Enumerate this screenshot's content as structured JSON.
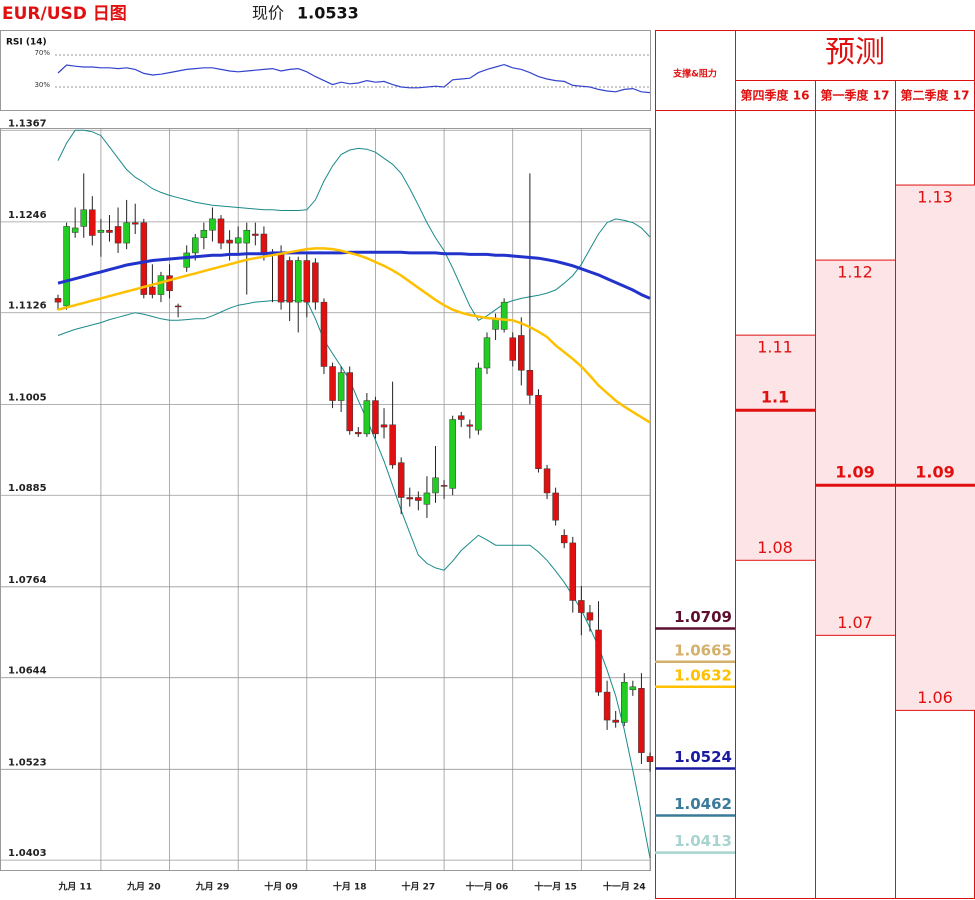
{
  "header": {
    "title": "EUR/USD 日图",
    "price_label": "现价",
    "price": 1.0533
  },
  "chart_data": [
    {
      "type": "candlestick",
      "categories": [
        null,
        null,
        "九月 11",
        null,
        null,
        null,
        null,
        null,
        null,
        null,
        "九月 20",
        null,
        null,
        null,
        null,
        null,
        null,
        null,
        "九月 29",
        null,
        null,
        null,
        null,
        null,
        null,
        null,
        "十月 09",
        null,
        null,
        null,
        null,
        null,
        null,
        null,
        "十月 18",
        null,
        null,
        null,
        null,
        null,
        null,
        null,
        "十月 27",
        null,
        null,
        null,
        null,
        null,
        null,
        null,
        "十一月 06",
        null,
        null,
        null,
        null,
        null,
        null,
        null,
        "十一月 15",
        null,
        null,
        null,
        null,
        null,
        null,
        null,
        "十一月 24",
        null,
        null,
        null
      ],
      "open": [
        1.1145,
        1.1135,
        1.1232,
        1.124,
        1.1262,
        1.1232,
        1.1235,
        1.124,
        1.1218,
        1.1245,
        1.1245,
        1.116,
        1.115,
        1.1175,
        1.1135,
        1.1186,
        1.1205,
        1.1225,
        1.1235,
        1.125,
        1.1222,
        1.1218,
        1.1218,
        1.123,
        1.123,
        1.1205,
        1.1205,
        1.1195,
        1.114,
        1.1195,
        1.1192,
        1.114,
        1.1055,
        1.101,
        1.1047,
        1.0968,
        1.0966,
        1.101,
        1.0978,
        1.0978,
        1.0928,
        1.0882,
        1.0882,
        1.0873,
        1.0888,
        1.0898,
        1.0894,
        1.099,
        1.0978,
        1.0971,
        1.1053,
        1.1104,
        1.1104,
        1.1093,
        1.1096,
        1.105,
        1.1017,
        1.092,
        1.0888,
        1.0832,
        1.0822,
        1.0746,
        1.073,
        1.0707,
        1.0625,
        1.0588,
        1.0585,
        1.0628,
        1.063,
        1.054
      ],
      "high": [
        1.115,
        1.1245,
        1.1265,
        1.131,
        1.128,
        1.125,
        1.1255,
        1.1265,
        1.1275,
        1.127,
        1.125,
        1.119,
        1.118,
        1.119,
        1.1138,
        1.1215,
        1.123,
        1.1245,
        1.1265,
        1.1255,
        1.1235,
        1.124,
        1.1245,
        1.1245,
        1.124,
        1.121,
        1.1215,
        1.12,
        1.12,
        1.1205,
        1.1198,
        1.1145,
        1.106,
        1.1055,
        1.1055,
        1.0975,
        1.102,
        1.1015,
        1.1,
        1.1035,
        1.0935,
        1.0895,
        1.089,
        1.091,
        1.095,
        1.0905,
        1.099,
        1.0995,
        1.0985,
        1.106,
        1.11,
        1.1125,
        1.1145,
        1.11,
        1.112,
        1.131,
        1.1025,
        1.0925,
        1.0895,
        1.084,
        1.083,
        1.0765,
        1.074,
        1.0745,
        1.064,
        1.06,
        1.065,
        1.064,
        1.065,
        1.0545
      ],
      "low": [
        1.113,
        1.113,
        1.1225,
        1.1225,
        1.1215,
        1.12,
        1.122,
        1.1205,
        1.121,
        1.123,
        1.1145,
        1.1145,
        1.114,
        1.1145,
        1.112,
        1.118,
        1.1195,
        1.121,
        1.122,
        1.121,
        1.1195,
        1.1205,
        1.115,
        1.1215,
        1.1195,
        1.114,
        1.113,
        1.1115,
        1.11,
        1.112,
        1.113,
        1.1045,
        1.1,
        1.0995,
        1.0965,
        1.0962,
        1.0962,
        1.096,
        1.096,
        1.092,
        1.086,
        1.087,
        1.0865,
        1.0855,
        1.0875,
        1.088,
        1.0885,
        1.0975,
        1.096,
        1.0965,
        1.1045,
        1.109,
        1.11,
        1.1055,
        1.103,
        1.1005,
        1.0915,
        1.088,
        1.0845,
        1.0815,
        1.073,
        1.07,
        1.0705,
        1.062,
        1.0575,
        1.0578,
        1.058,
        1.062,
        1.053,
        1.052
      ],
      "close": [
        1.114,
        1.124,
        1.1238,
        1.1262,
        1.1228,
        1.1235,
        1.1232,
        1.1218,
        1.1245,
        1.1243,
        1.115,
        1.115,
        1.1175,
        1.1155,
        1.1134,
        1.1205,
        1.1225,
        1.1235,
        1.125,
        1.1218,
        1.1218,
        1.1225,
        1.1235,
        1.1228,
        1.1205,
        1.1203,
        1.114,
        1.114,
        1.1195,
        1.114,
        1.114,
        1.1055,
        1.101,
        1.1047,
        1.097,
        1.0966,
        1.101,
        1.0966,
        1.0975,
        1.0925,
        1.0882,
        1.088,
        1.0878,
        1.0888,
        1.0908,
        1.0897,
        1.0985,
        1.0985,
        1.0976,
        1.1053,
        1.1093,
        1.1117,
        1.114,
        1.1063,
        1.105,
        1.1017,
        1.092,
        1.0888,
        1.0852,
        1.0822,
        1.0746,
        1.073,
        1.072,
        1.0625,
        1.0588,
        1.0585,
        1.0638,
        1.0632,
        1.0545,
        1.0533
      ],
      "up_color": "#22cc22",
      "down_color": "#e01010",
      "series": [
        {
          "color": "#1a8a8a",
          "width": 1,
          "values": [
            1.1327,
            1.135,
            1.1367,
            1.1367,
            1.1365,
            1.136,
            1.1345,
            1.133,
            1.1315,
            1.1305,
            1.1298,
            1.129,
            1.1285,
            1.1281,
            1.1278,
            1.1275,
            1.1272,
            1.127,
            1.1268,
            1.1267,
            1.1266,
            1.1265,
            1.1264,
            1.1263,
            1.1262,
            1.1262,
            1.1261,
            1.1261,
            1.1261,
            1.1262,
            1.1275,
            1.13,
            1.132,
            1.1335,
            1.1341,
            1.1343,
            1.1342,
            1.1338,
            1.133,
            1.1322,
            1.131,
            1.129,
            1.1268,
            1.1245,
            1.1225,
            1.1208,
            1.1185,
            1.116,
            1.1135,
            1.1116,
            1.1122,
            1.113,
            1.1138,
            1.1142,
            1.1145,
            1.1147,
            1.1149,
            1.1152,
            1.1156,
            1.1165,
            1.1175,
            1.119,
            1.121,
            1.123,
            1.1245,
            1.125,
            1.1248,
            1.1245,
            1.1238,
            1.1226
          ]
        },
        {
          "color": "#1a8a8a",
          "width": 1,
          "values": [
            1.1096,
            1.11,
            1.1104,
            1.1107,
            1.111,
            1.1113,
            1.1117,
            1.112,
            1.1123,
            1.1126,
            1.1124,
            1.1121,
            1.1118,
            1.1116,
            1.1116,
            1.1117,
            1.1118,
            1.1118,
            1.1122,
            1.1127,
            1.1132,
            1.1136,
            1.1138,
            1.114,
            1.1141,
            1.1142,
            1.1142,
            1.1142,
            1.1142,
            1.1142,
            1.1118,
            1.109,
            1.1072,
            1.1055,
            1.1037,
            1.101,
            1.0985,
            1.0958,
            1.093,
            1.0898,
            1.0865,
            1.0835,
            1.0806,
            1.0795,
            1.0789,
            1.0786,
            1.0798,
            1.0812,
            1.0822,
            1.0832,
            1.0826,
            1.0819,
            1.0819,
            1.0819,
            1.0819,
            1.0819,
            1.081,
            1.0799,
            1.0785,
            1.077,
            1.0752,
            1.0733,
            1.071,
            1.0685,
            1.0654,
            1.062,
            1.0575,
            1.0522,
            1.0465,
            1.0406
          ]
        },
        {
          "color": "#2233cc",
          "width": 3,
          "values": [
            1.1165,
            1.1168,
            1.1171,
            1.1174,
            1.1177,
            1.118,
            1.1183,
            1.1186,
            1.1189,
            1.1191,
            1.1193,
            1.1195,
            1.1196,
            1.1197,
            1.1198,
            1.1199,
            1.12,
            1.1201,
            1.1202,
            1.1202,
            1.1203,
            1.1203,
            1.1204,
            1.1204,
            1.1204,
            1.1205,
            1.1205,
            1.1205,
            1.1205,
            1.1205,
            1.1205,
            1.1205,
            1.1205,
            1.1205,
            1.1206,
            1.1206,
            1.1206,
            1.1206,
            1.1206,
            1.1206,
            1.1206,
            1.1205,
            1.1205,
            1.1205,
            1.1205,
            1.1204,
            1.1204,
            1.1204,
            1.1203,
            1.1203,
            1.1203,
            1.1202,
            1.1202,
            1.1201,
            1.12,
            1.1199,
            1.1198,
            1.1196,
            1.1194,
            1.1191,
            1.1188,
            1.1184,
            1.118,
            1.1176,
            1.1171,
            1.1166,
            1.1161,
            1.1156,
            1.115,
            1.1145
          ]
        },
        {
          "color": "#ffc000",
          "width": 2.5,
          "values": [
            1.113,
            1.1133,
            1.1136,
            1.1139,
            1.1142,
            1.1145,
            1.1148,
            1.1151,
            1.1154,
            1.1157,
            1.116,
            1.1163,
            1.1166,
            1.1169,
            1.1172,
            1.1175,
            1.1178,
            1.1181,
            1.1184,
            1.1187,
            1.119,
            1.1193,
            1.1196,
            1.1198,
            1.12,
            1.1202,
            1.1204,
            1.1206,
            1.1208,
            1.121,
            1.1211,
            1.1211,
            1.121,
            1.1208,
            1.1205,
            1.1202,
            1.1198,
            1.1193,
            1.1188,
            1.1182,
            1.1175,
            1.1167,
            1.1159,
            1.1151,
            1.1143,
            1.1136,
            1.113,
            1.1126,
            1.1123,
            1.1121,
            1.1119,
            1.1118,
            1.1117,
            1.1116,
            1.1112,
            1.1107,
            1.1101,
            1.1094,
            1.1083,
            1.1074,
            1.1065,
            1.1055,
            1.1043,
            1.103,
            1.102,
            1.101,
            1.1002,
            1.0995,
            1.0988,
            1.0981
          ]
        }
      ],
      "ylim": [
        1.039,
        1.137
      ],
      "yticks": [
        1.1367,
        1.1246,
        1.1126,
        1.1005,
        1.0885,
        1.0764,
        1.0644,
        1.0523,
        1.0403
      ],
      "grid": true
    },
    {
      "type": "line",
      "title": "RSI (14)",
      "color": "#3344cc",
      "values": [
        47.5,
        57.5,
        56,
        55,
        55,
        54,
        54,
        53,
        54,
        52,
        47,
        45,
        46,
        48,
        50,
        52,
        53,
        54,
        54,
        52,
        50,
        49,
        50,
        51,
        52,
        53,
        50,
        52,
        53,
        49,
        43,
        38,
        33,
        36,
        34,
        35,
        38,
        36,
        37,
        33,
        30,
        29,
        29,
        30,
        31,
        30,
        39,
        40,
        41,
        48,
        52,
        55,
        58,
        54,
        52,
        48,
        43,
        40,
        38,
        37,
        32,
        31,
        30,
        27,
        25,
        24,
        27,
        28,
        24,
        23
      ],
      "ylim": [
        0,
        100
      ],
      "yticks": [
        {
          "value": 70,
          "label": "70%"
        },
        {
          "value": 30,
          "label": "30%"
        }
      ]
    }
  ],
  "support_resistance": {
    "title": "支撑&阻力",
    "levels": [
      {
        "value": 1.0709,
        "color": "#5c0f2e"
      },
      {
        "value": 1.0665,
        "color": "#d4b06a"
      },
      {
        "value": 1.0632,
        "color": "#ffc000"
      },
      {
        "value": 1.0524,
        "color": "#1a1aa0"
      },
      {
        "value": 1.0462,
        "color": "#3a7a9a"
      },
      {
        "value": 1.0413,
        "color": "#a8d4d0"
      }
    ]
  },
  "forecast": {
    "title": "预测",
    "ylim": [
      1.035,
      1.14
    ],
    "columns": [
      {
        "name": "第四季度 16",
        "high": 1.11,
        "mid": 1.1,
        "low": 1.08
      },
      {
        "name": "第一季度 17",
        "high": 1.12,
        "mid": 1.09,
        "low": 1.07
      },
      {
        "name": "第二季度 17",
        "high": 1.13,
        "mid": 1.09,
        "low": 1.06
      }
    ]
  }
}
